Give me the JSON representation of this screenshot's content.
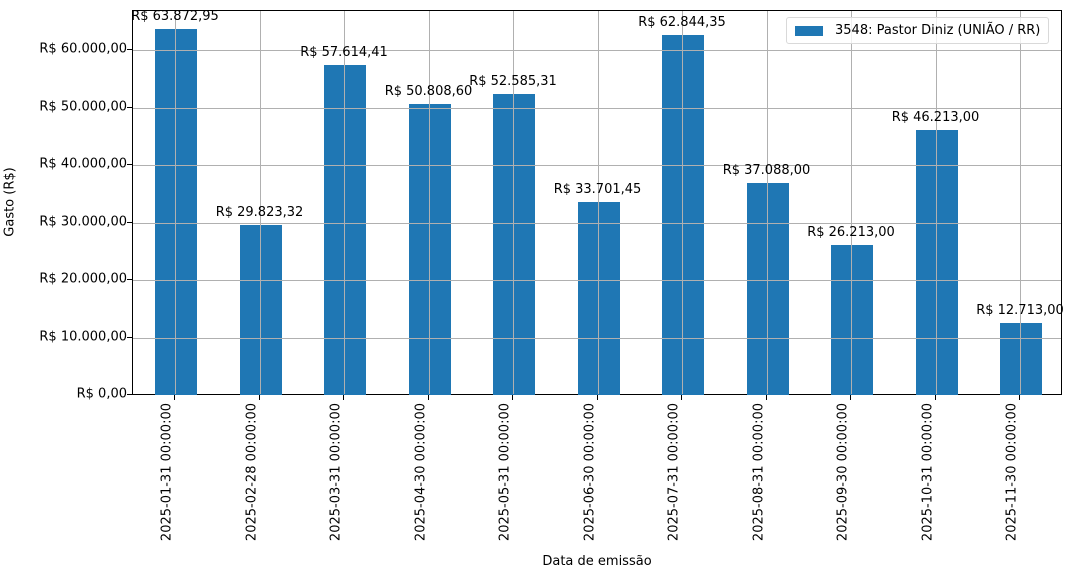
{
  "chart_data": {
    "type": "bar",
    "title": "",
    "xlabel": "Data de emissão",
    "ylabel": "Gasto (R$)",
    "ylim": [
      0,
      67000
    ],
    "grid": true,
    "legend_position": "upper right",
    "categories": [
      "2025-01-31 00:00:00",
      "2025-02-28 00:00:00",
      "2025-03-31 00:00:00",
      "2025-04-30 00:00:00",
      "2025-05-31 00:00:00",
      "2025-06-30 00:00:00",
      "2025-07-31 00:00:00",
      "2025-08-31 00:00:00",
      "2025-09-30 00:00:00",
      "2025-10-31 00:00:00",
      "2025-11-30 00:00:00"
    ],
    "series": [
      {
        "name": "3548: Pastor Diniz (UNIÃO / RR)",
        "color": "#1f77b4",
        "values": [
          63872.95,
          29823.32,
          57614.41,
          50808.6,
          52585.31,
          33701.45,
          62844.35,
          37088.0,
          26213.0,
          46213.0,
          12713.0
        ],
        "labels": [
          "R$ 63.872,95",
          "R$ 29.823,32",
          "R$ 57.614,41",
          "R$ 50.808,60",
          "R$ 52.585,31",
          "R$ 33.701,45",
          "R$ 62.844,35",
          "R$ 37.088,00",
          "R$ 26.213,00",
          "R$ 46.213,00",
          "R$ 12.713,00"
        ]
      }
    ],
    "yticks": [
      {
        "value": 0,
        "label": "R$ 0,00"
      },
      {
        "value": 10000,
        "label": "R$ 10.000,00"
      },
      {
        "value": 20000,
        "label": "R$ 20.000,00"
      },
      {
        "value": 30000,
        "label": "R$ 30.000,00"
      },
      {
        "value": 40000,
        "label": "R$ 40.000,00"
      },
      {
        "value": 50000,
        "label": "R$ 50.000,00"
      },
      {
        "value": 60000,
        "label": "R$ 60.000,00"
      }
    ]
  },
  "legend": {
    "label": "3548: Pastor Diniz (UNIÃO / RR)"
  },
  "axes": {
    "xlabel": "Data de emissão",
    "ylabel": "Gasto (R$)"
  }
}
